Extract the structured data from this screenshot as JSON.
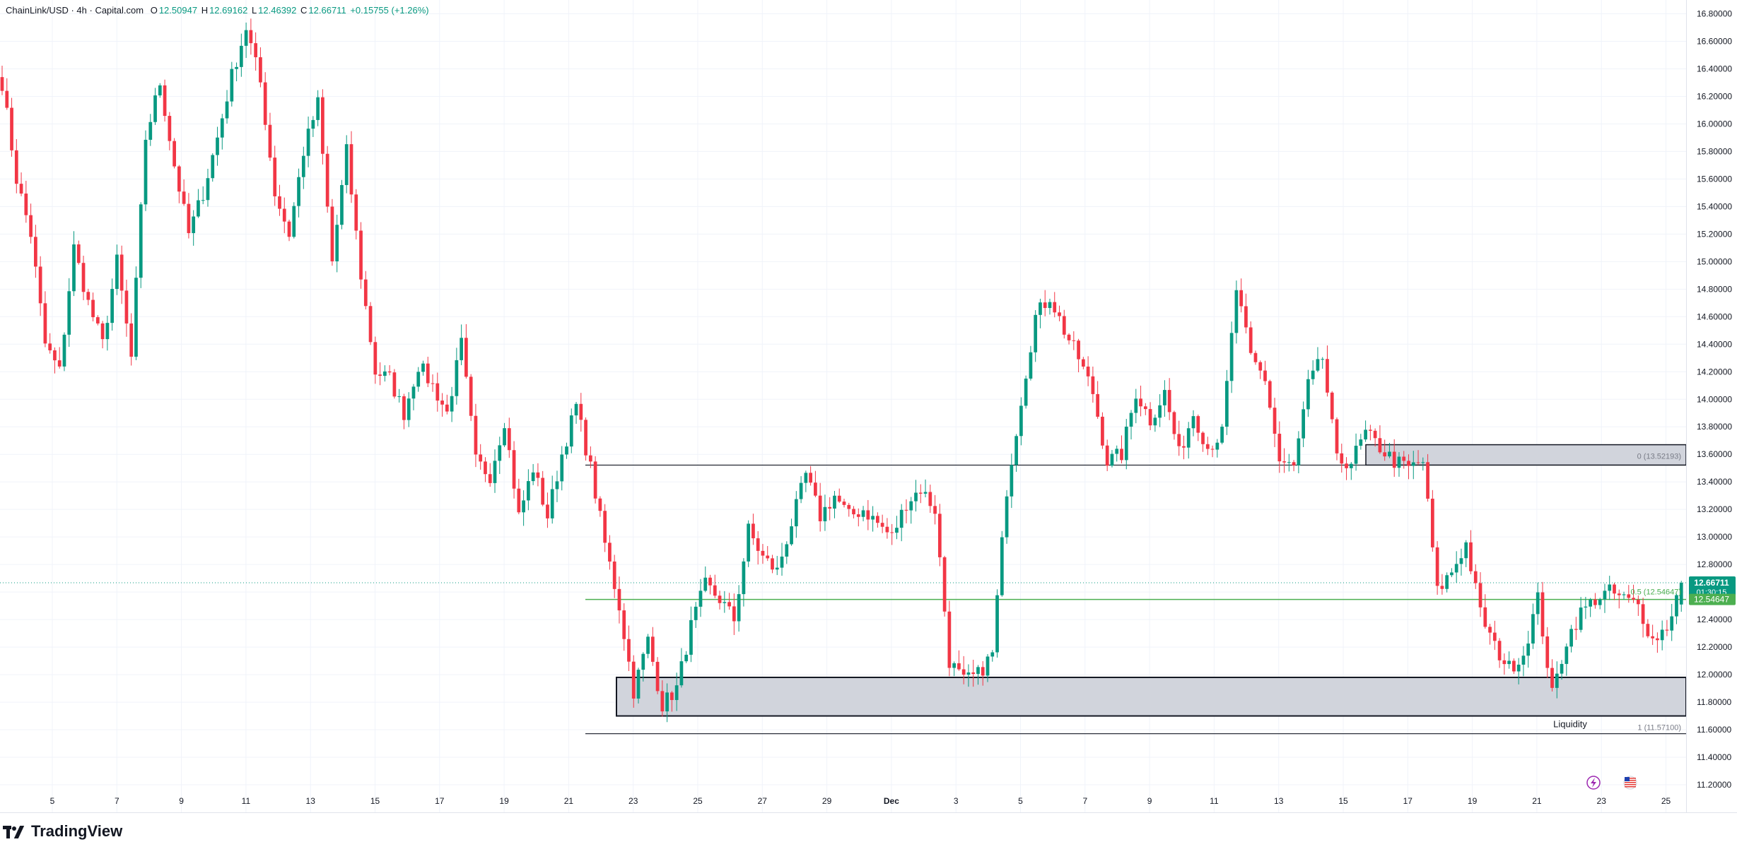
{
  "header": {
    "symbol": "ChainLink/USD · 4h · Capital.com",
    "open_label": "O",
    "open": "12.50947",
    "high_label": "H",
    "high": "12.69162",
    "low_label": "L",
    "low": "12.46392",
    "close_label": "C",
    "close": "12.66711",
    "change": "+0.15755 (+1.26%)"
  },
  "brand": "TradingView",
  "colors": {
    "up": "#089981",
    "down": "#f23645",
    "fib_mid": "#4caf50",
    "zone_fill": "#d1d4dc",
    "zone_border": "#131722",
    "grid": "#f0f3fa",
    "text": "#131722"
  },
  "price_tag": {
    "price": "12.66711",
    "countdown": "01:30:15"
  },
  "annotations": {
    "fib_0": "0 (13.52193)",
    "fib_05": "0.5 (12.54647)",
    "fib_1": "1 (11.57100)",
    "liquidity": "Liquidity"
  },
  "icons": [
    "lightning-icon",
    "us-flag-icon"
  ],
  "chart_data": {
    "type": "candlestick",
    "title": "",
    "xlabel": "",
    "ylabel": "",
    "ylim": [
      11.0,
      16.9
    ],
    "grid": true,
    "y_ticks": [
      "16.80000",
      "16.60000",
      "16.40000",
      "16.20000",
      "16.00000",
      "15.80000",
      "15.60000",
      "15.40000",
      "15.20000",
      "15.00000",
      "14.80000",
      "14.60000",
      "14.40000",
      "14.20000",
      "14.00000",
      "13.80000",
      "13.60000",
      "13.40000",
      "13.20000",
      "13.00000",
      "12.80000",
      "12.60000",
      "12.40000",
      "12.20000",
      "12.00000",
      "11.80000",
      "11.60000",
      "11.40000",
      "11.20000"
    ],
    "x_ticks": [
      "5",
      "7",
      "9",
      "11",
      "13",
      "15",
      "17",
      "19",
      "21",
      "23",
      "25",
      "27",
      "29",
      "Dec",
      "3",
      "5",
      "7",
      "9",
      "11",
      "13",
      "15",
      "17",
      "19",
      "21",
      "23",
      "25"
    ],
    "levels": [
      {
        "name": "fib 0",
        "price": 13.52193
      },
      {
        "name": "fib 0.5",
        "price": 12.54647
      },
      {
        "name": "fib 1",
        "price": 11.571
      },
      {
        "name": "last",
        "price": 12.66711
      }
    ],
    "zones": [
      {
        "name": "upper-zone",
        "from": 13.52193,
        "to": 13.67
      },
      {
        "name": "liquidity-zone",
        "from": 11.7,
        "to": 11.98
      }
    ],
    "anchors": [
      [
        0,
        16.3
      ],
      [
        3,
        15.6
      ],
      [
        6,
        15.2
      ],
      [
        9,
        14.4
      ],
      [
        12,
        14.2
      ],
      [
        15,
        15.1
      ],
      [
        18,
        14.7
      ],
      [
        21,
        14.4
      ],
      [
        24,
        15.0
      ],
      [
        27,
        14.3
      ],
      [
        30,
        15.9
      ],
      [
        33,
        16.3
      ],
      [
        36,
        15.7
      ],
      [
        39,
        15.2
      ],
      [
        42,
        15.5
      ],
      [
        45,
        15.9
      ],
      [
        48,
        16.35
      ],
      [
        51,
        16.7
      ],
      [
        54,
        16.3
      ],
      [
        57,
        15.5
      ],
      [
        60,
        15.2
      ],
      [
        63,
        15.8
      ],
      [
        66,
        16.15
      ],
      [
        69,
        15.0
      ],
      [
        72,
        15.8
      ],
      [
        75,
        14.9
      ],
      [
        78,
        14.2
      ],
      [
        81,
        14.15
      ],
      [
        84,
        13.9
      ],
      [
        87,
        14.25
      ],
      [
        90,
        14.1
      ],
      [
        93,
        13.9
      ],
      [
        96,
        14.4
      ],
      [
        99,
        13.55
      ],
      [
        102,
        13.45
      ],
      [
        105,
        13.85
      ],
      [
        108,
        13.15
      ],
      [
        111,
        13.5
      ],
      [
        114,
        13.15
      ],
      [
        117,
        13.6
      ],
      [
        120,
        13.95
      ],
      [
        123,
        13.5
      ],
      [
        126,
        12.95
      ],
      [
        129,
        12.5
      ],
      [
        132,
        11.88
      ],
      [
        135,
        12.25
      ],
      [
        138,
        11.78
      ],
      [
        141,
        11.9
      ],
      [
        144,
        12.35
      ],
      [
        147,
        12.65
      ],
      [
        150,
        12.55
      ],
      [
        153,
        12.4
      ],
      [
        156,
        13.05
      ],
      [
        159,
        12.85
      ],
      [
        162,
        12.75
      ],
      [
        165,
        13.1
      ],
      [
        168,
        13.45
      ],
      [
        171,
        13.15
      ],
      [
        174,
        13.3
      ],
      [
        177,
        13.15
      ],
      [
        180,
        13.2
      ],
      [
        183,
        13.1
      ],
      [
        186,
        13.0
      ],
      [
        189,
        13.25
      ],
      [
        192,
        13.35
      ],
      [
        195,
        13.2
      ],
      [
        198,
        12.1
      ],
      [
        201,
        11.95
      ],
      [
        204,
        12.0
      ],
      [
        207,
        12.15
      ],
      [
        210,
        13.35
      ],
      [
        213,
        14.0
      ],
      [
        216,
        14.6
      ],
      [
        219,
        14.75
      ],
      [
        222,
        14.5
      ],
      [
        225,
        14.3
      ],
      [
        228,
        14.05
      ],
      [
        231,
        13.55
      ],
      [
        234,
        13.6
      ],
      [
        237,
        14.05
      ],
      [
        240,
        13.85
      ],
      [
        243,
        14.05
      ],
      [
        246,
        13.6
      ],
      [
        249,
        13.9
      ],
      [
        252,
        13.65
      ],
      [
        255,
        13.75
      ],
      [
        258,
        14.8
      ],
      [
        261,
        14.3
      ],
      [
        264,
        14.15
      ],
      [
        267,
        13.55
      ],
      [
        270,
        13.5
      ],
      [
        273,
        14.1
      ],
      [
        276,
        14.3
      ],
      [
        279,
        13.55
      ],
      [
        282,
        13.55
      ],
      [
        285,
        13.75
      ],
      [
        288,
        13.65
      ],
      [
        291,
        13.55
      ],
      [
        294,
        13.5
      ],
      [
        297,
        13.55
      ],
      [
        300,
        12.6
      ],
      [
        303,
        12.75
      ],
      [
        306,
        12.95
      ],
      [
        309,
        12.45
      ],
      [
        312,
        12.2
      ],
      [
        315,
        12.05
      ],
      [
        318,
        12.15
      ],
      [
        321,
        12.55
      ],
      [
        324,
        11.85
      ],
      [
        327,
        12.25
      ],
      [
        330,
        12.45
      ],
      [
        333,
        12.55
      ],
      [
        336,
        12.6
      ],
      [
        339,
        12.55
      ],
      [
        342,
        12.5
      ],
      [
        345,
        12.25
      ],
      [
        348,
        12.35
      ],
      [
        351,
        12.67
      ]
    ],
    "candle_count": 352,
    "last_close": 12.66711
  }
}
